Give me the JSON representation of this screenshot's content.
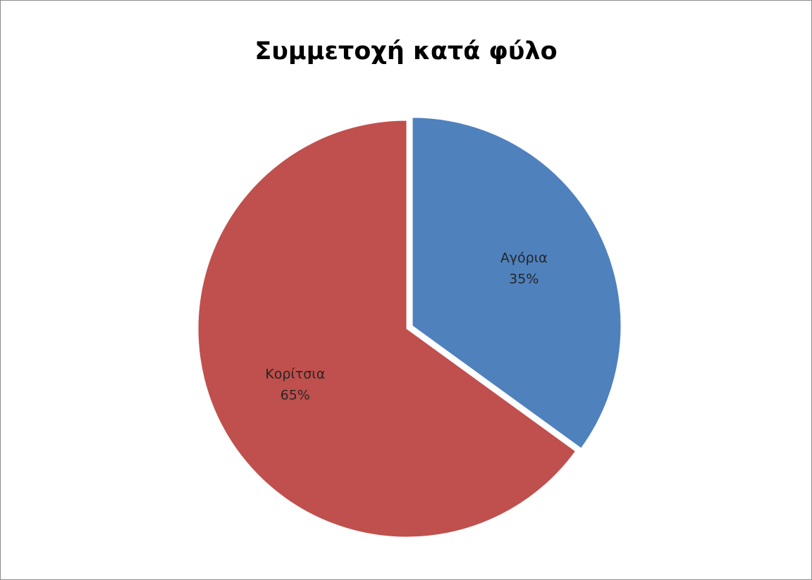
{
  "chart_data": {
    "type": "pie",
    "title": "Συμμετοχή κατά φύλο",
    "slices": [
      {
        "label": "Αγόρια",
        "value": 35,
        "percent_label": "35%",
        "color": "#4f81bd",
        "exploded": true
      },
      {
        "label": "Κορίτσια",
        "value": 65,
        "percent_label": "65%",
        "color": "#c0504d",
        "exploded": false
      }
    ],
    "start_angle_deg": 0,
    "direction": "clockwise",
    "legend": "none",
    "data_labels": "inside"
  }
}
